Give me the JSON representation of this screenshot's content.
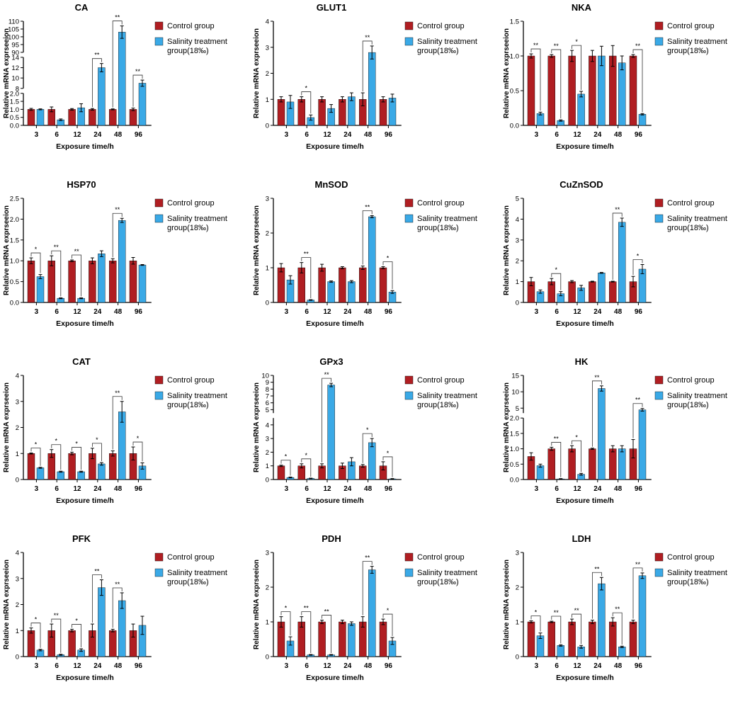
{
  "legend": {
    "control": "Control group",
    "treatment_line1": "Salinity treatment",
    "treatment_line2": "group(18‰)"
  },
  "colors": {
    "control": "#b01e22",
    "treatment": "#3aa9e6",
    "axis": "#000000"
  },
  "chart_data": [
    {
      "type": "bar",
      "title": "CA",
      "xlabel": "Exposure time/h",
      "ylabel": "Relative mRNA exprseeion",
      "categories": [
        "3",
        "6",
        "12",
        "24",
        "48",
        "96"
      ],
      "broken_axis": true,
      "segments": [
        {
          "ylim": [
            0,
            2.0
          ],
          "ticks": [
            "0.0",
            "0.5",
            "1.0",
            "1.5",
            "2.0"
          ]
        },
        {
          "ylim": [
            8,
            14
          ],
          "ticks": [
            "8",
            "10",
            "12",
            "14"
          ]
        },
        {
          "ylim": [
            90,
            110
          ],
          "ticks": [
            "90",
            "95",
            "100",
            "105",
            "110"
          ]
        }
      ],
      "series": [
        {
          "name": "Control group",
          "values": [
            1.0,
            1.0,
            1.0,
            1.0,
            1.0,
            1.0
          ],
          "errors": [
            0.06,
            0.15,
            0.05,
            0.05,
            0.03,
            0.08
          ]
        },
        {
          "name": "Salinity treatment group(18‰)",
          "values": [
            1.0,
            0.35,
            1.1,
            12,
            103,
            9
          ],
          "errors": [
            0.03,
            0.05,
            0.25,
            0.8,
            4,
            0.6
          ]
        }
      ],
      "significance": [
        "",
        "",
        "",
        "**",
        "**",
        "**"
      ]
    },
    {
      "type": "bar",
      "title": "GLUT1",
      "xlabel": "Exposure time/h",
      "ylabel": "Relative mRNA exprseeion",
      "categories": [
        "3",
        "6",
        "12",
        "24",
        "48",
        "96"
      ],
      "ylim": [
        0,
        4
      ],
      "ticks": [
        "0",
        "1",
        "2",
        "3",
        "4"
      ],
      "series": [
        {
          "name": "Control group",
          "values": [
            1.0,
            1.0,
            1.0,
            1.0,
            1.0,
            1.0
          ],
          "errors": [
            0.1,
            0.1,
            0.1,
            0.1,
            0.25,
            0.1
          ]
        },
        {
          "name": "Salinity treatment group(18‰)",
          "values": [
            0.9,
            0.3,
            0.65,
            1.1,
            2.8,
            1.05
          ],
          "errors": [
            0.25,
            0.1,
            0.15,
            0.15,
            0.25,
            0.15
          ]
        }
      ],
      "significance": [
        "",
        "*",
        "",
        "",
        "**",
        ""
      ]
    },
    {
      "type": "bar",
      "title": "NKA",
      "xlabel": "Exposure time/h",
      "ylabel": "Relative mRNA exprseeion",
      "categories": [
        "3",
        "6",
        "12",
        "24",
        "48",
        "96"
      ],
      "ylim": [
        0,
        1.5
      ],
      "ticks": [
        "0.0",
        "0.5",
        "1.0",
        "1.5"
      ],
      "series": [
        {
          "name": "Control group",
          "values": [
            1.0,
            1.0,
            1.0,
            1.0,
            1.0,
            1.0
          ],
          "errors": [
            0.03,
            0.02,
            0.08,
            0.08,
            0.15,
            0.02
          ]
        },
        {
          "name": "Salinity treatment group(18‰)",
          "values": [
            0.17,
            0.07,
            0.45,
            1.0,
            0.9,
            0.16
          ],
          "errors": [
            0.02,
            0.01,
            0.04,
            0.14,
            0.1,
            0.01
          ]
        }
      ],
      "significance": [
        "**",
        "**",
        "*",
        "",
        "",
        "**"
      ]
    },
    {
      "type": "bar",
      "title": "HSP70",
      "xlabel": "Exposure time/h",
      "ylabel": "Relative mRNA exprseeion",
      "categories": [
        "3",
        "6",
        "12",
        "24",
        "48",
        "96"
      ],
      "ylim": [
        0,
        2.5
      ],
      "ticks": [
        "0.0",
        "0.5",
        "1.0",
        "1.5",
        "2.0",
        "2.5"
      ],
      "series": [
        {
          "name": "Control group",
          "values": [
            1.0,
            1.0,
            1.0,
            1.0,
            1.0,
            1.0
          ],
          "errors": [
            0.07,
            0.12,
            0.02,
            0.07,
            0.05,
            0.08
          ]
        },
        {
          "name": "Salinity treatment group(18‰)",
          "values": [
            0.62,
            0.1,
            0.1,
            1.17,
            1.97,
            0.9
          ],
          "errors": [
            0.05,
            0.01,
            0.01,
            0.07,
            0.05,
            0.01
          ]
        }
      ],
      "significance": [
        "*",
        "**",
        "**",
        "",
        "**",
        ""
      ]
    },
    {
      "type": "bar",
      "title": "MnSOD",
      "xlabel": "Exposure time/h",
      "ylabel": "Relative mRNA exprseeion",
      "categories": [
        "3",
        "6",
        "12",
        "24",
        "48",
        "96"
      ],
      "ylim": [
        0,
        3
      ],
      "ticks": [
        "0",
        "1",
        "2",
        "3"
      ],
      "series": [
        {
          "name": "Control group",
          "values": [
            1.0,
            1.0,
            1.0,
            1.0,
            1.0,
            1.0
          ],
          "errors": [
            0.12,
            0.15,
            0.1,
            0.03,
            0.05,
            0.03
          ]
        },
        {
          "name": "Salinity treatment group(18‰)",
          "values": [
            0.65,
            0.07,
            0.6,
            0.6,
            2.47,
            0.3
          ],
          "errors": [
            0.12,
            0.01,
            0.02,
            0.03,
            0.03,
            0.04
          ]
        }
      ],
      "significance": [
        "",
        "**",
        "",
        "",
        "**",
        "*"
      ]
    },
    {
      "type": "bar",
      "title": "CuZnSOD",
      "xlabel": "Exposure time/h",
      "ylabel": "Relative mRNA exprseeion",
      "categories": [
        "3",
        "6",
        "12",
        "24",
        "48",
        "96"
      ],
      "ylim": [
        0,
        5
      ],
      "ticks": [
        "0",
        "1",
        "2",
        "3",
        "4",
        "5"
      ],
      "series": [
        {
          "name": "Control group",
          "values": [
            1.0,
            1.0,
            1.0,
            1.0,
            1.0,
            1.0
          ],
          "errors": [
            0.2,
            0.15,
            0.05,
            0.02,
            0.02,
            0.25
          ]
        },
        {
          "name": "Salinity treatment group(18‰)",
          "values": [
            0.52,
            0.42,
            0.7,
            1.42,
            3.85,
            1.6
          ],
          "errors": [
            0.08,
            0.1,
            0.12,
            0.02,
            0.2,
            0.22
          ]
        }
      ],
      "significance": [
        "",
        "*",
        "",
        "",
        "**",
        "*"
      ]
    },
    {
      "type": "bar",
      "title": "CAT",
      "xlabel": "Exposure time/h",
      "ylabel": "Relative mRNA exprseeion",
      "categories": [
        "3",
        "6",
        "12",
        "24",
        "48",
        "96"
      ],
      "ylim": [
        0,
        4
      ],
      "ticks": [
        "0",
        "1",
        "2",
        "3",
        "4"
      ],
      "series": [
        {
          "name": "Control group",
          "values": [
            1.0,
            1.0,
            1.0,
            1.0,
            1.0,
            1.0
          ],
          "errors": [
            0.02,
            0.15,
            0.05,
            0.2,
            0.1,
            0.25
          ]
        },
        {
          "name": "Salinity treatment group(18‰)",
          "values": [
            0.45,
            0.3,
            0.3,
            0.6,
            2.6,
            0.52
          ],
          "errors": [
            0.02,
            0.02,
            0.02,
            0.05,
            0.4,
            0.12
          ]
        }
      ],
      "significance": [
        "*",
        "*",
        "*",
        "*",
        "**",
        "*"
      ]
    },
    {
      "type": "bar",
      "title": "GPx3",
      "xlabel": "Exposure time/h",
      "ylabel": "Relative mRNA exprseeion",
      "categories": [
        "3",
        "6",
        "12",
        "24",
        "48",
        "96"
      ],
      "broken_axis": true,
      "segments": [
        {
          "ylim": [
            0,
            4.5
          ],
          "ticks": [
            "0",
            "1",
            "2",
            "3",
            "4"
          ]
        },
        {
          "ylim": [
            4.5,
            10
          ],
          "ticks": [
            "5",
            "6",
            "7",
            "8",
            "9",
            "10"
          ]
        }
      ],
      "series": [
        {
          "name": "Control group",
          "values": [
            1.0,
            1.0,
            1.0,
            1.0,
            1.0,
            1.0
          ],
          "errors": [
            0.05,
            0.15,
            0.15,
            0.2,
            0.1,
            0.3
          ]
        },
        {
          "name": "Salinity treatment group(18‰)",
          "values": [
            0.15,
            0.08,
            8.6,
            1.3,
            2.7,
            0.05
          ],
          "errors": [
            0.03,
            0.02,
            0.25,
            0.3,
            0.3,
            0.02
          ]
        }
      ],
      "significance": [
        "*",
        "*",
        "**",
        "",
        "*",
        "*"
      ]
    },
    {
      "type": "bar",
      "title": "HK",
      "xlabel": "Exposure time/h",
      "ylabel": "Relative mRNA exprseeion",
      "categories": [
        "3",
        "6",
        "12",
        "24",
        "48",
        "96"
      ],
      "broken_axis": true,
      "segments": [
        {
          "ylim": [
            0,
            2.0
          ],
          "ticks": [
            "0.0",
            "0.5",
            "1.0",
            "1.5",
            "2.0"
          ]
        },
        {
          "ylim": [
            3.5,
            15
          ],
          "ticks": [
            "5",
            "10",
            "15"
          ]
        }
      ],
      "series": [
        {
          "name": "Control group",
          "values": [
            0.75,
            1.0,
            1.0,
            1.0,
            1.0,
            1.0
          ],
          "errors": [
            0.12,
            0.05,
            0.1,
            0.02,
            0.1,
            0.3
          ]
        },
        {
          "name": "Salinity treatment group(18‰)",
          "values": [
            0.45,
            0.02,
            0.17,
            11,
            1.0,
            4.5
          ],
          "errors": [
            0.05,
            0.01,
            0.03,
            0.8,
            0.1,
            0.4
          ]
        }
      ],
      "significance": [
        "",
        "**",
        "*",
        "**",
        "",
        "**"
      ]
    },
    {
      "type": "bar",
      "title": "PFK",
      "xlabel": "Exposure time/h",
      "ylabel": "Relative mRNA exprseeion",
      "categories": [
        "3",
        "6",
        "12",
        "24",
        "48",
        "96"
      ],
      "ylim": [
        0,
        4
      ],
      "ticks": [
        "0",
        "1",
        "2",
        "3",
        "4"
      ],
      "series": [
        {
          "name": "Control group",
          "values": [
            1.0,
            1.0,
            1.0,
            1.0,
            1.0,
            1.0
          ],
          "errors": [
            0.1,
            0.25,
            0.05,
            0.25,
            0.05,
            0.25
          ]
        },
        {
          "name": "Salinity treatment group(18‰)",
          "values": [
            0.25,
            0.07,
            0.25,
            2.65,
            2.15,
            1.2
          ],
          "errors": [
            0.03,
            0.02,
            0.05,
            0.3,
            0.3,
            0.35
          ]
        }
      ],
      "significance": [
        "*",
        "**",
        "*",
        "**",
        "**",
        ""
      ]
    },
    {
      "type": "bar",
      "title": "PDH",
      "xlabel": "Exposure time/h",
      "ylabel": "Relative mRNA exprseeion",
      "categories": [
        "3",
        "6",
        "12",
        "24",
        "48",
        "96"
      ],
      "ylim": [
        0,
        3
      ],
      "ticks": [
        "0",
        "1",
        "2",
        "3"
      ],
      "series": [
        {
          "name": "Control group",
          "values": [
            1.0,
            1.0,
            1.0,
            1.0,
            1.0,
            1.0
          ],
          "errors": [
            0.15,
            0.15,
            0.05,
            0.05,
            0.15,
            0.08
          ]
        },
        {
          "name": "Salinity treatment group(18‰)",
          "values": [
            0.45,
            0.05,
            0.05,
            0.95,
            2.5,
            0.45
          ],
          "errors": [
            0.12,
            0.01,
            0.01,
            0.05,
            0.1,
            0.1
          ]
        }
      ],
      "significance": [
        "*",
        "**",
        "**",
        "",
        "**",
        "*"
      ]
    },
    {
      "type": "bar",
      "title": "LDH",
      "xlabel": "Exposure time/h",
      "ylabel": "Relative mRNA exprseeion",
      "categories": [
        "3",
        "6",
        "12",
        "24",
        "48",
        "96"
      ],
      "ylim": [
        0,
        3
      ],
      "ticks": [
        "0",
        "1",
        "2",
        "3"
      ],
      "series": [
        {
          "name": "Control group",
          "values": [
            1.0,
            1.0,
            1.0,
            1.0,
            1.0,
            1.0
          ],
          "errors": [
            0.03,
            0.02,
            0.08,
            0.05,
            0.12,
            0.05
          ]
        },
        {
          "name": "Salinity treatment group(18‰)",
          "values": [
            0.6,
            0.32,
            0.28,
            2.1,
            0.28,
            2.33
          ],
          "errors": [
            0.08,
            0.02,
            0.04,
            0.18,
            0.02,
            0.08
          ]
        }
      ],
      "significance": [
        "*",
        "**",
        "**",
        "**",
        "**",
        "**"
      ]
    }
  ]
}
